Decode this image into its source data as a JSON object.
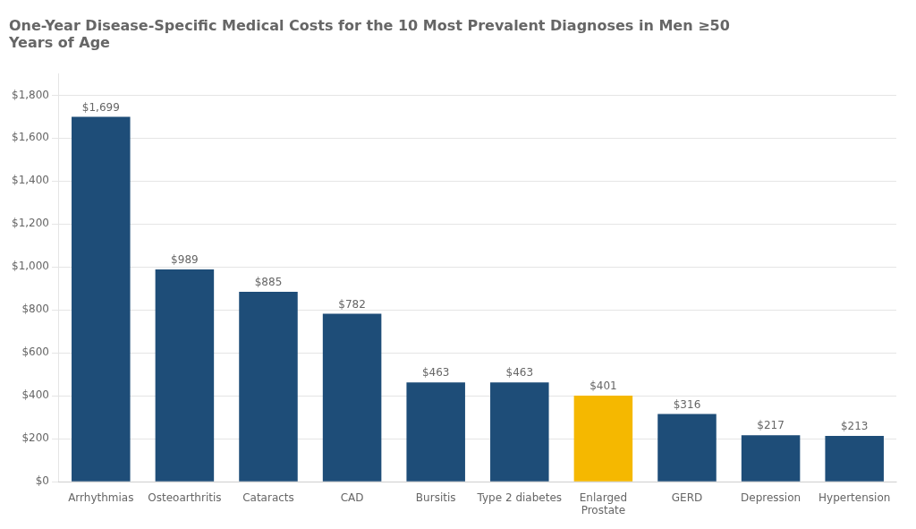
{
  "chart_data": {
    "type": "bar",
    "title": "One-Year Disease-Specific Medical Costs for the 10 Most Prevalent Diagnoses in Men ≥50\nYears of Age",
    "categories": [
      "Arrhythmias",
      "Osteoarthritis",
      "Cataracts",
      "CAD",
      "Bursitis",
      "Type 2 diabetes",
      "Enlarged\nProstate",
      "GERD",
      "Depression",
      "Hypertension"
    ],
    "values": [
      1699,
      989,
      885,
      782,
      463,
      463,
      401,
      316,
      217,
      213
    ],
    "value_labels": [
      "$1,699",
      "$989",
      "$885",
      "$782",
      "$463",
      "$463",
      "$401",
      "$316",
      "$217",
      "$213"
    ],
    "data_labels": true,
    "colors": [
      "#1e4d78",
      "#1e4d78",
      "#1e4d78",
      "#1e4d78",
      "#1e4d78",
      "#1e4d78",
      "#f5b800",
      "#1e4d78",
      "#1e4d78",
      "#1e4d78"
    ],
    "ylim": [
      0,
      1900
    ],
    "yticks": [
      {
        "value": 0,
        "label": "$0"
      },
      {
        "value": 200,
        "label": "$200"
      },
      {
        "value": 400,
        "label": "$400"
      },
      {
        "value": 600,
        "label": "$600"
      },
      {
        "value": 800,
        "label": "$800"
      },
      {
        "value": 1000,
        "label": "$1,000"
      },
      {
        "value": 1200,
        "label": "$1,200"
      },
      {
        "value": 1400,
        "label": "$1,400"
      },
      {
        "value": 1600,
        "label": "$1,600"
      },
      {
        "value": 1800,
        "label": "$1,800"
      }
    ],
    "grid": true
  }
}
